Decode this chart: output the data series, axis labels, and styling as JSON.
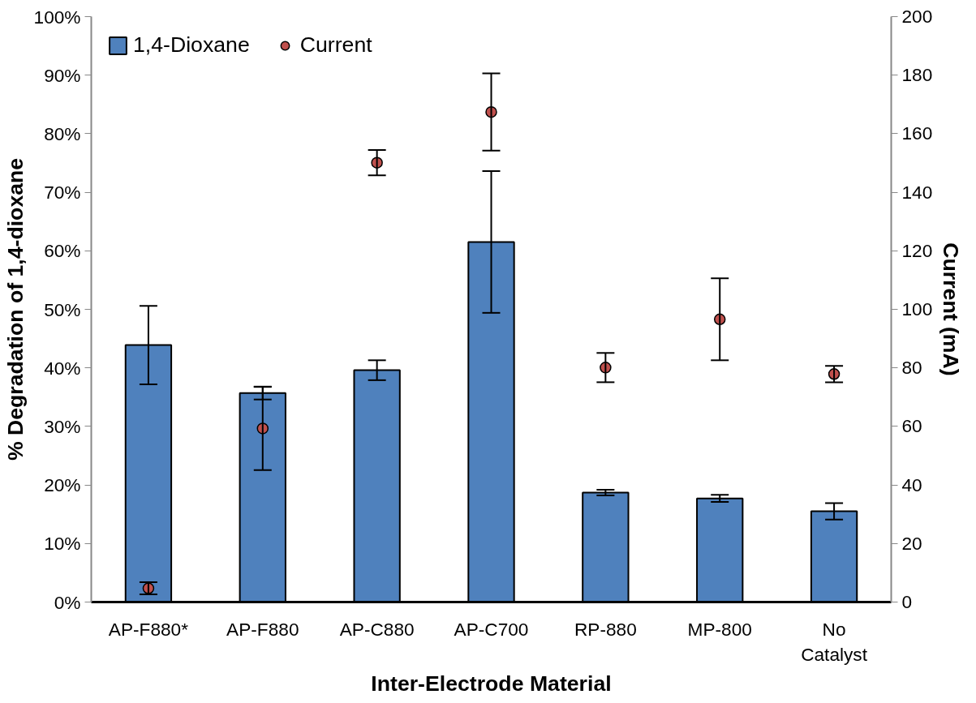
{
  "chart_data": {
    "type": "bar",
    "xlabel": "Inter-Electrode Material",
    "ylabel": "% Degradation of 1,4-dioxane",
    "y2label": "Current (mA)",
    "categories": [
      "AP-F880*",
      "AP-F880",
      "AP-C880",
      "AP-C700",
      "RP-880",
      "MP-800",
      "No Catalyst"
    ],
    "series": [
      {
        "name": "1,4-Dioxane",
        "color": "#4f81bd",
        "values": [
          43.9,
          35.7,
          39.6,
          61.5,
          18.7,
          17.7,
          15.5
        ],
        "errors": [
          6.7,
          1.1,
          1.7,
          12.1,
          0.5,
          0.6,
          1.4
        ]
      },
      {
        "name": "Current",
        "type": "scatter",
        "axis": "y2",
        "marker": "circle",
        "color": "#c0504d",
        "values": [
          4.7,
          59.3,
          150.1,
          167.4,
          80.1,
          96.6,
          77.9
        ],
        "errors": [
          2.1,
          14.2,
          4.3,
          13.2,
          5,
          14,
          2.8
        ]
      }
    ],
    "ylim": [
      0,
      100
    ],
    "yticks": [
      {
        "value": 0,
        "label": "0%"
      },
      {
        "value": 10,
        "label": "10%"
      },
      {
        "value": 20,
        "label": "20%"
      },
      {
        "value": 30,
        "label": "30%"
      },
      {
        "value": 40,
        "label": "40%"
      },
      {
        "value": 50,
        "label": "50%"
      },
      {
        "value": 60,
        "label": "60%"
      },
      {
        "value": 70,
        "label": "70%"
      },
      {
        "value": 80,
        "label": "80%"
      },
      {
        "value": 90,
        "label": "90%"
      },
      {
        "value": 100,
        "label": "100%"
      }
    ],
    "y2lim": [
      0,
      200
    ],
    "y2ticks": [
      0,
      20,
      40,
      60,
      80,
      100,
      120,
      140,
      160,
      180,
      200
    ],
    "legend": "top left",
    "grid": false
  }
}
